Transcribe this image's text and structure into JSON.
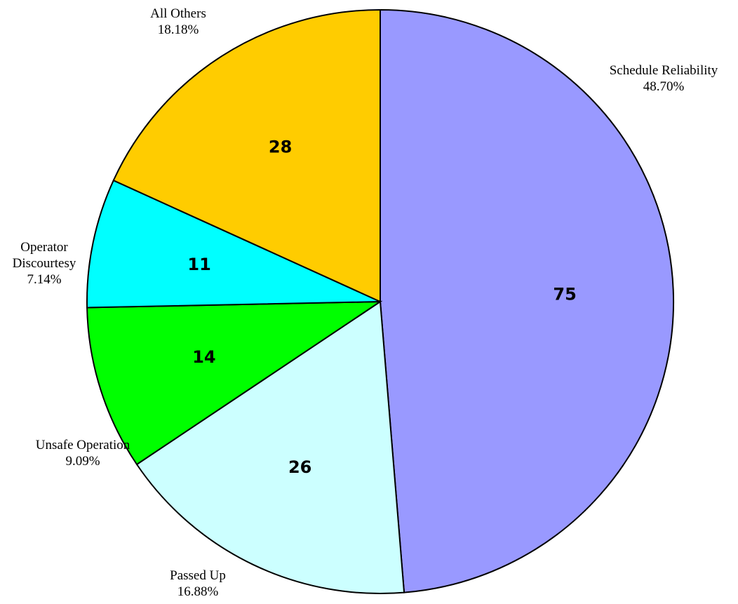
{
  "chart_data": {
    "type": "pie",
    "title": "",
    "slices": [
      {
        "label": "Schedule Reliability",
        "value": 75,
        "value_text": "75",
        "percent_text": "48.70%",
        "color": "#9999ff"
      },
      {
        "label": "Passed Up",
        "value": 26,
        "value_text": "26",
        "percent_text": "16.88%",
        "color": "#ccffff"
      },
      {
        "label": "Unsafe Operation",
        "value": 14,
        "value_text": "14",
        "percent_text": "9.09%",
        "color": "#00ff00"
      },
      {
        "label": "Operator Discourtesy",
        "label_lines": [
          "Operator",
          "Discourtesy"
        ],
        "value": 11,
        "value_text": "11",
        "percent_text": "7.14%",
        "color": "#00ffff"
      },
      {
        "label": "All Others",
        "value": 28,
        "value_text": "28",
        "percent_text": "18.18%",
        "color": "#ffcc00"
      }
    ],
    "start": "12 o'clock",
    "direction": "clockwise",
    "legend": "none"
  }
}
